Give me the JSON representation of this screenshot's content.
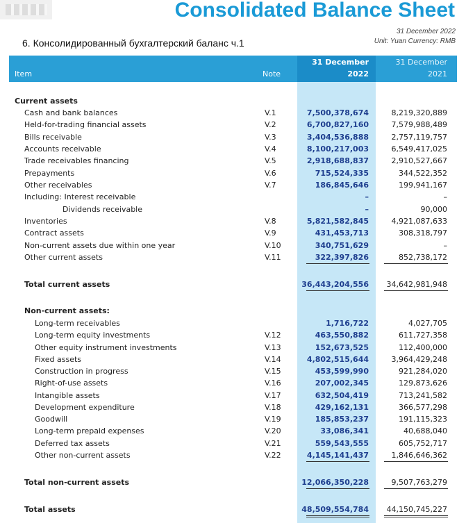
{
  "header": {
    "title": "Consolidated Balance Sheet",
    "subtitle": "6. Консолидированный бухгалтерский баланс ч.1",
    "date": "31 December 2022",
    "unit": "Unit: Yuan   Currency: RMB"
  },
  "table": {
    "header": {
      "item": "Item",
      "note": "Note",
      "col2022": [
        "31 December",
        "2022"
      ],
      "col2021": [
        "31 December",
        "2021"
      ]
    },
    "current": {
      "heading": "Current assets",
      "rows": [
        [
          "Cash and bank balances",
          "V.1",
          "7,500,378,674",
          "8,219,320,889"
        ],
        [
          "Held-for-trading financial assets",
          "V.2",
          "6,700,827,160",
          "7,579,988,489"
        ],
        [
          "Bills receivable",
          "V.3",
          "3,404,536,888",
          "2,757,119,757"
        ],
        [
          "Accounts receivable",
          "V.4",
          "8,100,217,003",
          "6,549,417,025"
        ],
        [
          "Trade receivables financing",
          "V.5",
          "2,918,688,837",
          "2,910,527,667"
        ],
        [
          "Prepayments",
          "V.6",
          "715,524,335",
          "344,522,352"
        ],
        [
          "Other receivables",
          "V.7",
          "186,845,646",
          "199,941,167"
        ],
        [
          "Including: Interest receivable",
          null,
          "–",
          "–"
        ],
        [
          "Dividends receivable",
          null,
          "–",
          "90,000"
        ],
        [
          "Inventories",
          "V.8",
          "5,821,582,845",
          "4,921,087,633"
        ],
        [
          "Contract assets",
          "V.9",
          "431,453,713",
          "308,318,797"
        ],
        [
          "Non-current assets due within one year",
          "V.10",
          "340,751,629",
          "–"
        ],
        [
          "Other current assets",
          "V.11",
          "322,397,826",
          "852,738,172"
        ]
      ],
      "total": [
        "Total current assets",
        "36,443,204,556",
        "34,642,981,948"
      ]
    },
    "noncurrent": {
      "heading": "Non-current assets:",
      "rows": [
        [
          "Long-term receivables",
          null,
          "1,716,722",
          "4,027,705"
        ],
        [
          "Long-term equity investments",
          "V.12",
          "463,550,882",
          "611,727,358"
        ],
        [
          "Other equity instrument investments",
          "V.13",
          "152,673,525",
          "112,400,000"
        ],
        [
          "Fixed assets",
          "V.14",
          "4,802,515,644",
          "3,964,429,248"
        ],
        [
          "Construction in progress",
          "V.15",
          "453,599,990",
          "921,284,020"
        ],
        [
          "Right-of-use assets",
          "V.16",
          "207,002,345",
          "129,873,626"
        ],
        [
          "Intangible assets",
          "V.17",
          "632,504,419",
          "713,241,582"
        ],
        [
          "Development expenditure",
          "V.18",
          "429,162,131",
          "366,577,298"
        ],
        [
          "Goodwill",
          "V.19",
          "185,853,237",
          "191,115,323"
        ],
        [
          "Long-term prepaid expenses",
          "V.20",
          "33,086,341",
          "40,688,040"
        ],
        [
          "Deferred tax assets",
          "V.21",
          "559,543,555",
          "605,752,717"
        ],
        [
          "Other non-current assets",
          "V.22",
          "4,145,141,437",
          "1,846,646,362"
        ]
      ],
      "total": [
        "Total non-current assets",
        "12,066,350,228",
        "9,507,763,279"
      ]
    },
    "total_assets": [
      "Total assets",
      "48,509,554,784",
      "44,150,745,227"
    ]
  }
}
